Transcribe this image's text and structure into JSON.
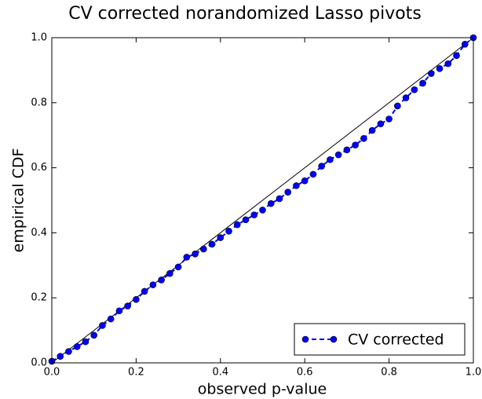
{
  "chart_data": {
    "type": "line",
    "title": "CV corrected norandomized Lasso pivots",
    "xlabel": "observed p-value",
    "ylabel": "empirical CDF",
    "x": [
      0,
      0.02,
      0.04,
      0.06,
      0.08,
      0.1,
      0.12,
      0.14,
      0.16,
      0.18,
      0.2,
      0.22,
      0.24,
      0.26,
      0.28,
      0.3,
      0.32,
      0.34,
      0.36,
      0.38,
      0.4,
      0.42,
      0.44,
      0.46,
      0.48,
      0.5,
      0.52,
      0.54,
      0.56,
      0.58,
      0.6,
      0.62,
      0.64,
      0.66,
      0.68,
      0.7,
      0.72,
      0.74,
      0.76,
      0.78,
      0.8,
      0.82,
      0.84,
      0.86,
      0.88,
      0.9,
      0.92,
      0.94,
      0.96,
      0.98,
      1.0
    ],
    "series": [
      {
        "name": "CV corrected",
        "color": "#0000ff",
        "values": [
          0.005,
          0.02,
          0.035,
          0.05,
          0.065,
          0.085,
          0.115,
          0.135,
          0.16,
          0.175,
          0.195,
          0.22,
          0.24,
          0.255,
          0.275,
          0.295,
          0.325,
          0.335,
          0.35,
          0.365,
          0.385,
          0.405,
          0.425,
          0.44,
          0.455,
          0.47,
          0.49,
          0.505,
          0.525,
          0.545,
          0.56,
          0.58,
          0.605,
          0.625,
          0.64,
          0.655,
          0.67,
          0.69,
          0.715,
          0.735,
          0.75,
          0.79,
          0.815,
          0.84,
          0.86,
          0.89,
          0.905,
          0.92,
          0.945,
          0.98,
          1.0
        ]
      }
    ],
    "xlim": [
      0,
      1
    ],
    "ylim": [
      0,
      1
    ],
    "xticks": [
      {
        "value": 0,
        "label": "0.0"
      },
      0.2,
      0.4,
      0.6,
      0.8,
      {
        "value": 1,
        "label": "1.0"
      }
    ],
    "yticks": [
      {
        "value": 0,
        "label": "0.0"
      },
      0.2,
      0.4,
      0.6,
      0.8,
      {
        "value": 1,
        "label": "1.0"
      }
    ],
    "legend": "lower right"
  }
}
